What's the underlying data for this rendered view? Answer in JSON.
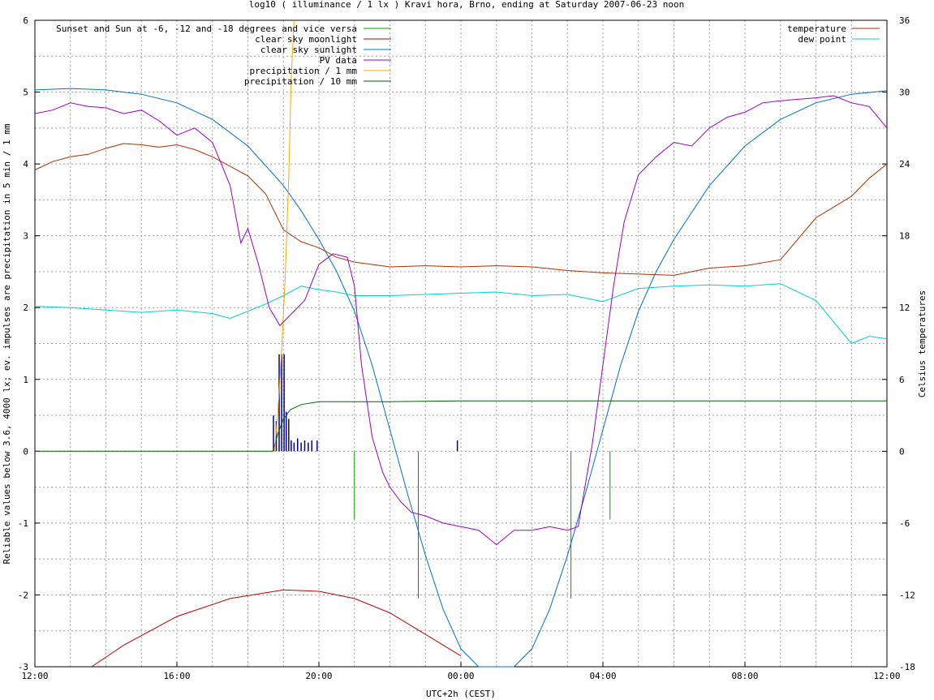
{
  "chart_data": {
    "type": "line",
    "title": "log10 ( illuminance / 1 lx ) Kravi hora, Brno, ending at Saturday 2007-06-23 noon",
    "xlabel": "UTC+2h (CEST)",
    "ylabel": "Reliable values below 3.6, 4000 lx; ev. impulses are precipitation in 5 min / 1 mm",
    "y2label": "Celsius temperatures",
    "xlim_hours": [
      12,
      36
    ],
    "ylim": [
      -3,
      6
    ],
    "y2lim": [
      -18,
      36
    ],
    "grid": true,
    "legend_left_position": "top-left",
    "legend_right_position": "top-right",
    "x_ticks": [
      "12:00",
      "16:00",
      "20:00",
      "00:00",
      "04:00",
      "08:00",
      "12:00"
    ],
    "y_ticks": [
      "-3",
      "-2",
      "-1",
      "0",
      "1",
      "2",
      "3",
      "4",
      "5",
      "6"
    ],
    "y2_ticks": [
      "-18",
      "-12",
      "-6",
      "0",
      "6",
      "12",
      "18",
      "24",
      "30",
      "36"
    ],
    "legend_left": [
      {
        "name": "Sunset and Sun at -6, -12 and -18 degrees and vice versa",
        "color": "#00a000"
      },
      {
        "name": "clear sky moonlight",
        "color": "#c00000"
      },
      {
        "name": "clear sky sunlight",
        "color": "#0070d0"
      },
      {
        "name": "PV data",
        "color": "#9a00d0"
      },
      {
        "name": "precipitation / 1 mm",
        "color": "#ffa500"
      },
      {
        "name": "precipitation / 10 mm",
        "color": "#006400"
      }
    ],
    "legend_right": [
      {
        "name": "temperature",
        "color": "#b03000"
      },
      {
        "name": "dew point",
        "color": "#00d0d0"
      }
    ],
    "twilight_marker_hours": [
      21.0,
      22.8,
      27.1,
      28.2,
      28.9
    ],
    "twilight_marker_y": [
      -0.95,
      -2.05,
      -2.05,
      -0.95,
      0.02
    ],
    "moonlight": {
      "x": [
        13.6,
        14.5,
        16,
        17.5,
        19,
        20,
        21,
        22,
        23,
        24
      ],
      "y": [
        -3,
        -2.7,
        -2.3,
        -2.05,
        -1.93,
        -1.95,
        -2.05,
        -2.25,
        -2.55,
        -2.85
      ]
    },
    "sunlight": {
      "x": [
        12,
        13,
        14,
        15,
        16,
        17,
        18,
        19,
        19.5,
        20,
        20.5,
        21,
        21.5,
        22,
        22.5,
        23,
        23.5,
        24,
        24.5,
        25,
        25.5,
        26,
        26.5,
        27,
        27.5,
        28,
        28.5,
        29,
        29.5,
        30,
        31,
        32,
        33,
        34,
        35,
        36
      ],
      "y": [
        5.03,
        5.05,
        5.03,
        4.97,
        4.85,
        4.62,
        4.25,
        3.7,
        3.35,
        2.95,
        2.5,
        1.95,
        1.2,
        0.3,
        -0.6,
        -1.45,
        -2.2,
        -2.75,
        -3.0,
        -3.0,
        -3.0,
        -2.75,
        -2.2,
        -1.45,
        -0.6,
        0.3,
        1.2,
        1.95,
        2.5,
        2.95,
        3.7,
        4.25,
        4.62,
        4.85,
        4.97,
        5.02
      ]
    },
    "pv_data": {
      "x": [
        12,
        12.5,
        13,
        13.5,
        14,
        14.5,
        15,
        15.5,
        16,
        16.5,
        17,
        17.5,
        17.8,
        18,
        18.3,
        18.6,
        18.9,
        19.2,
        19.6,
        20,
        20.4,
        20.8,
        21,
        21.2,
        21.5,
        21.8,
        22,
        22.3,
        22.6,
        23,
        23.5,
        24,
        24.5,
        25,
        25.5,
        26,
        26.5,
        27,
        27.3,
        27.7,
        28,
        28.3,
        28.6,
        29,
        29.5,
        30,
        30.5,
        31,
        31.5,
        32,
        32.5,
        33,
        33.5,
        34,
        34.5,
        35,
        35.5,
        36
      ],
      "y": [
        4.7,
        4.75,
        4.85,
        4.8,
        4.78,
        4.7,
        4.75,
        4.6,
        4.4,
        4.5,
        4.3,
        3.7,
        2.9,
        3.1,
        2.6,
        2.0,
        1.75,
        1.9,
        2.1,
        2.6,
        2.75,
        2.7,
        2.3,
        1.2,
        0.2,
        -0.3,
        -0.5,
        -0.7,
        -0.85,
        -0.9,
        -1.0,
        -1.05,
        -1.1,
        -1.3,
        -1.1,
        -1.1,
        -1.05,
        -1.1,
        -1.05,
        0.1,
        1.2,
        2.3,
        3.2,
        3.85,
        4.1,
        4.3,
        4.25,
        4.5,
        4.65,
        4.72,
        4.85,
        4.88,
        4.9,
        4.92,
        4.95,
        4.85,
        4.8,
        4.5
      ]
    },
    "precip_1mm": {
      "x": [
        18.75,
        18.85,
        18.95,
        19.05,
        19.15,
        19.22,
        19.3
      ],
      "y": [
        0,
        0.6,
        1.4,
        2.4,
        3.8,
        5.2,
        6.0
      ]
    },
    "precip_10mm": {
      "x": [
        12,
        18.7,
        18.85,
        19,
        19.2,
        19.5,
        20,
        21,
        22,
        24,
        26,
        28,
        30,
        32,
        34,
        36
      ],
      "y": [
        0,
        0,
        0.25,
        0.45,
        0.58,
        0.65,
        0.69,
        0.69,
        0.69,
        0.7,
        0.7,
        0.7,
        0.7,
        0.7,
        0.7,
        0.7
      ]
    },
    "precip_impulses": {
      "x": [
        18.72,
        18.8,
        18.88,
        18.95,
        19.02,
        19.08,
        19.15,
        19.22,
        19.3,
        19.4,
        19.5,
        19.6,
        19.7,
        19.8,
        19.95,
        23.9
      ],
      "y": [
        0.5,
        0.42,
        1.35,
        1.35,
        1.35,
        0.55,
        0.45,
        0.15,
        0.12,
        0.18,
        0.12,
        0.15,
        0.12,
        0.15,
        0.15,
        0.15
      ]
    },
    "temperature": {
      "x": [
        12,
        12.5,
        13,
        13.5,
        14,
        14.5,
        15,
        15.5,
        16,
        16.5,
        17,
        17.5,
        18,
        18.5,
        19,
        19.5,
        20,
        20.5,
        21,
        22,
        23,
        24,
        25,
        26,
        27,
        28,
        29,
        30,
        31,
        32,
        33,
        34,
        35,
        35.5,
        36
      ],
      "y": [
        23.5,
        24.2,
        24.6,
        24.8,
        25.3,
        25.7,
        25.6,
        25.4,
        25.6,
        25.2,
        24.6,
        23.8,
        23.0,
        21.5,
        18.5,
        17.5,
        17.0,
        16.2,
        15.8,
        15.4,
        15.5,
        15.4,
        15.5,
        15.4,
        15.1,
        14.9,
        14.8,
        14.7,
        15.3,
        15.5,
        16.0,
        19.5,
        21.3,
        22.8,
        24.0
      ]
    },
    "dew_point": {
      "x": [
        12,
        13,
        14,
        15,
        16,
        17,
        17.5,
        18,
        18.5,
        19,
        19.5,
        20,
        20.5,
        21,
        22,
        23,
        24,
        25,
        26,
        27,
        28,
        29,
        30,
        31,
        32,
        33,
        34,
        35,
        35.5,
        36
      ],
      "y": [
        12.1,
        12.0,
        11.8,
        11.6,
        11.8,
        11.5,
        11.1,
        11.7,
        12.3,
        13.0,
        13.8,
        13.5,
        13.3,
        13.0,
        13.0,
        13.1,
        13.2,
        13.3,
        13.0,
        13.1,
        12.5,
        13.6,
        13.8,
        13.9,
        13.8,
        14.0,
        12.6,
        9.0,
        9.6,
        9.4
      ]
    }
  }
}
